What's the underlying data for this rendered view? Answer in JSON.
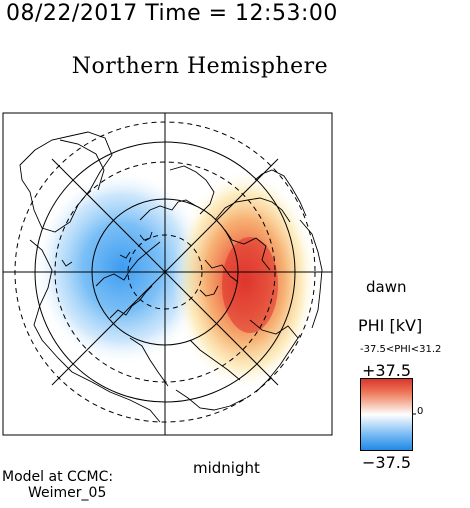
{
  "header": {
    "datetime": "08/22/2017 Time = 12:53:00",
    "hemisphere_title": "Northern Hemisphere"
  },
  "map": {
    "projection": "polar stereographic, north pole centered",
    "orientation_labels": {
      "dawn": "dawn",
      "midnight": "midnight"
    },
    "potential_pattern": {
      "negative_cell": {
        "side": "dusk",
        "color": "#3f9ff0"
      },
      "positive_cell": {
        "side": "dawn",
        "color": "#e8423a"
      }
    }
  },
  "colorbar": {
    "title": "PHI [kV]",
    "range_text": "-37.5<PHI<31.2",
    "max_label": "+37.5",
    "min_label": "−37.5",
    "zero_label": "0",
    "max_color": "#d9332b",
    "mid_color": "#ffffff",
    "min_color": "#1e88e5"
  },
  "footer": {
    "model_line1": "Model at CCMC:",
    "model_line2": "Weimer_05"
  }
}
